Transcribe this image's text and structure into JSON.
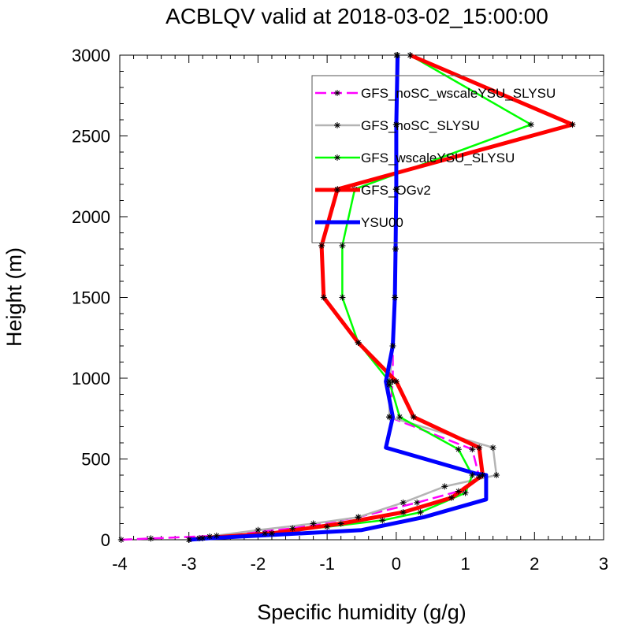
{
  "chart_data": {
    "type": "line",
    "title": "ACBLQV valid at 2018-03-02_15:00:00",
    "xlabel": "Specific humidity (g/g)",
    "ylabel": "Height (m)",
    "xlim": [
      -4,
      3
    ],
    "ylim": [
      0,
      3000
    ],
    "xticks": [
      -4,
      -3,
      -2,
      -1,
      0,
      1,
      2,
      3
    ],
    "yticks": [
      0,
      500,
      1000,
      1500,
      2000,
      2500,
      3000
    ],
    "grid": false,
    "legend_position": "top-right",
    "series": [
      {
        "name": "GFS_noSC_wscaleYSU_SLYSU",
        "color": "#ff00ff",
        "dash": "dashed",
        "markers": true,
        "points": [
          [
            -3.98,
            0
          ],
          [
            -3.55,
            8
          ],
          [
            -2.6,
            25
          ],
          [
            -1.5,
            70
          ],
          [
            -0.55,
            140
          ],
          [
            0.3,
            230
          ],
          [
            0.9,
            300
          ],
          [
            1.2,
            390
          ],
          [
            1.1,
            560
          ],
          [
            -0.1,
            760
          ],
          [
            -0.05,
            980
          ],
          [
            -0.05,
            1200
          ],
          [
            -0.02,
            1500
          ],
          [
            -0.01,
            1800
          ],
          [
            0,
            2170
          ],
          [
            0,
            2570
          ],
          [
            0.02,
            3000
          ]
        ]
      },
      {
        "name": "GFS_noSC_SLYSU",
        "color": "#b4b4b4",
        "dash": "solid",
        "markers": true,
        "points": [
          [
            -3.0,
            0
          ],
          [
            -2.7,
            20
          ],
          [
            -2.0,
            60
          ],
          [
            -1.2,
            100
          ],
          [
            -0.55,
            140
          ],
          [
            0.1,
            230
          ],
          [
            0.7,
            330
          ],
          [
            1.45,
            400
          ],
          [
            1.4,
            570
          ],
          [
            -0.1,
            760
          ],
          [
            -0.1,
            960
          ],
          [
            -0.05,
            1200
          ],
          [
            -0.02,
            1500
          ],
          [
            -0.01,
            1800
          ],
          [
            0,
            2170
          ],
          [
            0,
            2570
          ],
          [
            0,
            3000
          ]
        ]
      },
      {
        "name": "GFS_wscaleYSU_SLYSU",
        "color": "#00ff00",
        "dash": "solid",
        "markers": true,
        "points": [
          [
            -3.0,
            0
          ],
          [
            -2.85,
            10
          ],
          [
            -1.9,
            40
          ],
          [
            -1.0,
            80
          ],
          [
            -0.2,
            120
          ],
          [
            0.35,
            170
          ],
          [
            1.0,
            290
          ],
          [
            1.1,
            400
          ],
          [
            0.9,
            560
          ],
          [
            0.05,
            760
          ],
          [
            -0.1,
            980
          ],
          [
            -0.55,
            1220
          ],
          [
            -0.78,
            1500
          ],
          [
            -0.78,
            1820
          ],
          [
            -0.6,
            2170
          ],
          [
            1.95,
            2570
          ],
          [
            0.2,
            3000
          ]
        ]
      },
      {
        "name": "GFS_OGv2",
        "color": "#ff0000",
        "dash": "solid",
        "markers": true,
        "points": [
          [
            -3.0,
            0
          ],
          [
            -2.8,
            10
          ],
          [
            -1.8,
            40
          ],
          [
            -0.8,
            100
          ],
          [
            0.1,
            170
          ],
          [
            0.8,
            260
          ],
          [
            1.25,
            400
          ],
          [
            1.2,
            570
          ],
          [
            0.25,
            760
          ],
          [
            0,
            980
          ],
          [
            -0.55,
            1220
          ],
          [
            -1.05,
            1500
          ],
          [
            -1.08,
            1820
          ],
          [
            -0.85,
            2170
          ],
          [
            2.55,
            2570
          ],
          [
            0.2,
            3000
          ]
        ]
      },
      {
        "name": "YSU00",
        "color": "#0000ff",
        "dash": "solid",
        "markers": false,
        "points": [
          [
            -3.0,
            0
          ],
          [
            -2.7,
            10
          ],
          [
            -1.8,
            30
          ],
          [
            -0.5,
            60
          ],
          [
            0.4,
            140
          ],
          [
            1.3,
            250
          ],
          [
            1.3,
            400
          ],
          [
            1.15,
            410
          ],
          [
            -0.15,
            570
          ],
          [
            -0.05,
            760
          ],
          [
            -0.15,
            980
          ],
          [
            -0.05,
            1200
          ],
          [
            -0.02,
            1500
          ],
          [
            -0.01,
            1800
          ],
          [
            0,
            2170
          ],
          [
            0,
            2570
          ],
          [
            0.02,
            3000
          ]
        ]
      }
    ]
  }
}
